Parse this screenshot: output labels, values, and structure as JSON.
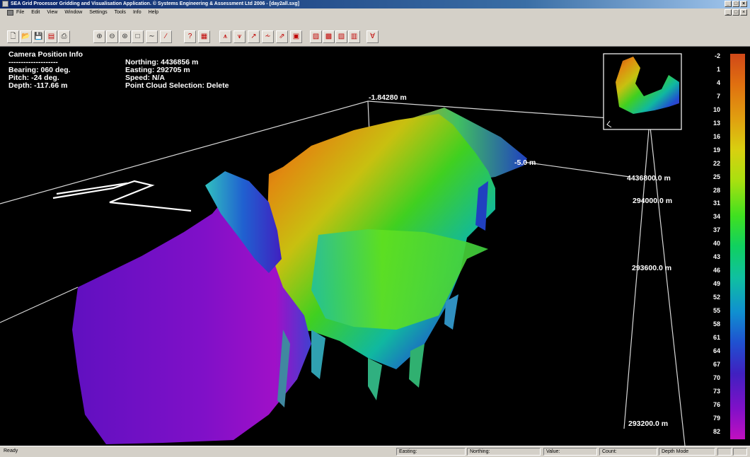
{
  "window": {
    "title": "SEA Grid Processor Gridding and Visualisation Application. © Systems Engineering & Assessment Ltd 2006 - [day2all.sxg]",
    "buttons": [
      "_",
      "□",
      "×"
    ],
    "icon": "app-icon"
  },
  "menu": {
    "items": [
      "File",
      "Edit",
      "View",
      "Window",
      "Settings",
      "Tools",
      "Info",
      "Help"
    ],
    "mdi_buttons": [
      "_",
      "□",
      "×"
    ]
  },
  "toolbar": {
    "buttons": [
      {
        "name": "new-icon",
        "glyph": "🗋",
        "tone": ""
      },
      {
        "name": "open-icon",
        "glyph": "📂",
        "tone": ""
      },
      {
        "name": "save-icon",
        "glyph": "💾",
        "tone": "blue"
      },
      {
        "name": "import-icon",
        "glyph": "▤",
        "tone": "red"
      },
      {
        "name": "print-icon",
        "glyph": "⎙",
        "tone": ""
      },
      {
        "name": "zoom-in-icon",
        "glyph": "⊕",
        "tone": ""
      },
      {
        "name": "zoom-out-icon",
        "glyph": "⊖",
        "tone": ""
      },
      {
        "name": "zoom-fit-icon",
        "glyph": "⊛",
        "tone": ""
      },
      {
        "name": "zoom-window-icon",
        "glyph": "□",
        "tone": ""
      },
      {
        "name": "profile-icon",
        "glyph": "∼",
        "tone": ""
      },
      {
        "name": "measure-icon",
        "glyph": "∕",
        "tone": "red"
      },
      {
        "name": "help-icon",
        "glyph": "?",
        "tone": "red"
      },
      {
        "name": "grid-icon",
        "glyph": "▦",
        "tone": "red"
      },
      {
        "name": "tool-1-icon",
        "glyph": "⩚",
        "tone": "red"
      },
      {
        "name": "tool-2-icon",
        "glyph": "⩛",
        "tone": "red"
      },
      {
        "name": "tool-3-icon",
        "glyph": "↗",
        "tone": "red"
      },
      {
        "name": "tool-4-icon",
        "glyph": "⩪",
        "tone": "red"
      },
      {
        "name": "tool-5-icon",
        "glyph": "⇗",
        "tone": "red"
      },
      {
        "name": "tool-6-icon",
        "glyph": "▣",
        "tone": "red"
      },
      {
        "name": "tool-7-icon",
        "glyph": "▨",
        "tone": "red"
      },
      {
        "name": "tool-8-icon",
        "glyph": "▩",
        "tone": "red"
      },
      {
        "name": "tool-9-icon",
        "glyph": "▧",
        "tone": "red"
      },
      {
        "name": "tool-10-icon",
        "glyph": "▥",
        "tone": "red"
      },
      {
        "name": "tool-11-icon",
        "glyph": "∀",
        "tone": "red"
      }
    ]
  },
  "camera": {
    "heading": "Camera Position Info",
    "separator": "--------------------",
    "bearing": "Bearing: 060 deg.",
    "pitch": "Pitch: -24 deg.",
    "depth": "Depth: -117.66 m",
    "northing": "Northing: 4436856 m",
    "easting": "Easting: 292705 m",
    "speed": "Speed: N/A",
    "point_cloud": "Point Cloud Selection: Delete"
  },
  "overlay": {
    "top_depth": "-1.84280 m",
    "mid_label": "-5.0 m",
    "northing_grid": "4436800.0 m",
    "easting_1": "294000.0 m",
    "easting_2": "293600.0 m",
    "easting_3": "293200.0 m"
  },
  "depth_scale": {
    "labels": [
      "-2",
      "1",
      "4",
      "7",
      "10",
      "13",
      "16",
      "19",
      "22",
      "25",
      "28",
      "31",
      "34",
      "37",
      "40",
      "43",
      "46",
      "49",
      "52",
      "55",
      "58",
      "61",
      "64",
      "67",
      "70",
      "73",
      "76",
      "79",
      "82"
    ],
    "colors": [
      "#d04818",
      "#e07010",
      "#e0a010",
      "#d8d010",
      "#a8e010",
      "#40e020",
      "#10d060",
      "#10c0a0",
      "#1090d0",
      "#2050d0",
      "#4020c0",
      "#8010c8",
      "#c010c0"
    ]
  },
  "status": {
    "ready": "Ready",
    "easting": "Easting:",
    "northing": "Northing:",
    "value": "Value:",
    "count": "Count:",
    "mode": "Depth Mode"
  }
}
